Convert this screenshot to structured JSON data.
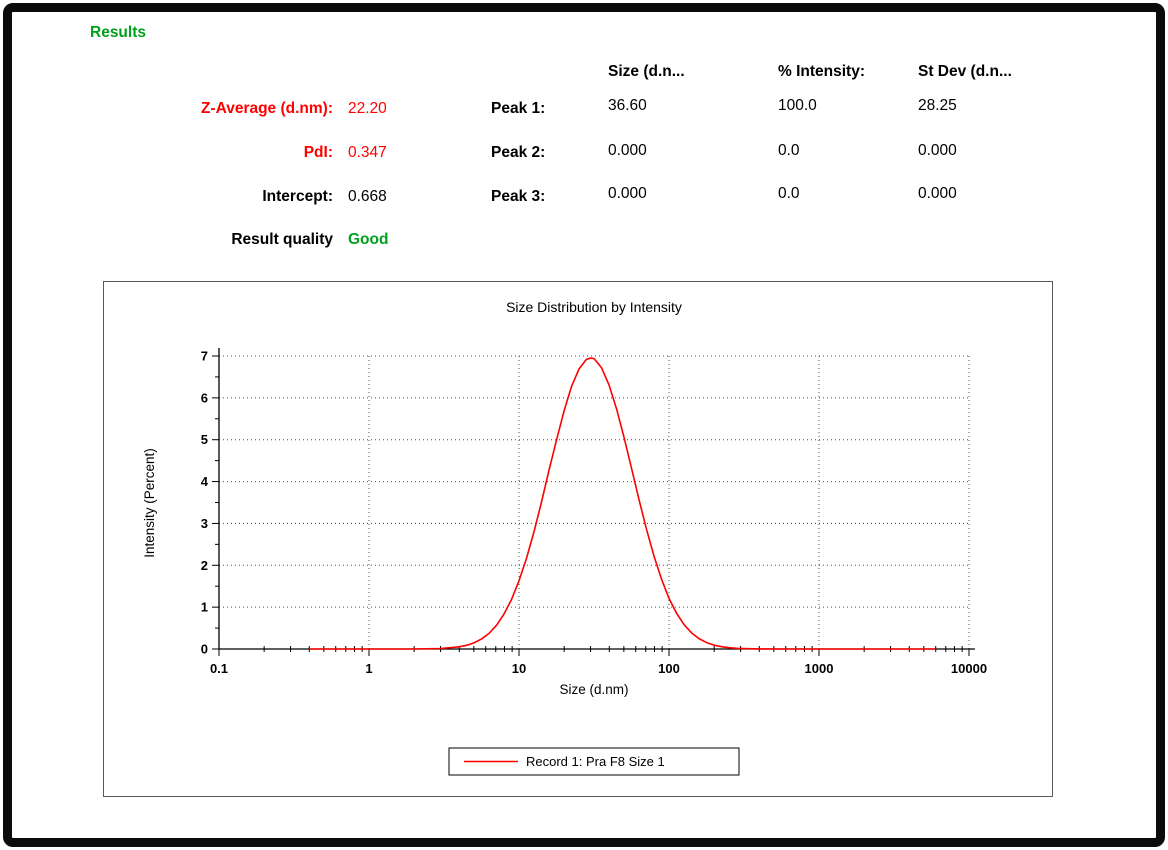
{
  "header": {
    "title": "Results"
  },
  "summary": {
    "rows": [
      {
        "label": "Z-Average (d.nm):",
        "value": "22.20"
      },
      {
        "label": "PdI:",
        "value": "0.347"
      },
      {
        "label": "Intercept:",
        "value": "0.668"
      },
      {
        "label": "Result quality",
        "value": "Good"
      }
    ]
  },
  "peaks": {
    "col_headers": {
      "size": "Size (d.n...",
      "intensity": "% Intensity:",
      "stdev": "St Dev (d.n..."
    },
    "rows": [
      {
        "label": "Peak 1:",
        "size": "36.60",
        "intensity": "100.0",
        "stdev": "28.25"
      },
      {
        "label": "Peak 2:",
        "size": "0.000",
        "intensity": "0.0",
        "stdev": "0.000"
      },
      {
        "label": "Peak 3:",
        "size": "0.000",
        "intensity": "0.0",
        "stdev": "0.000"
      }
    ]
  },
  "colors": {
    "accent_green": "#00a11c",
    "accent_red": "#ff0000",
    "curve_red": "#ff0000",
    "frame_black": "#0b0b0b"
  },
  "chart_data": {
    "type": "line",
    "title": "Size Distribution by Intensity",
    "xlabel": "Size (d.nm)",
    "ylabel": "Intensity (Percent)",
    "x_scale": "log",
    "xlim": [
      0.1,
      10000
    ],
    "ylim": [
      0,
      7
    ],
    "x_ticks": [
      "0.1",
      "1",
      "10",
      "100",
      "1000",
      "10000"
    ],
    "y_tick_step": 1,
    "grid_style": "dotted",
    "legend": {
      "position": "bottom-center",
      "label": "Record 1: Pra F8 Size 1"
    },
    "series": [
      {
        "name": "Record 1: Pra F8 Size 1",
        "color": "#ff0000",
        "peak_nm": 30,
        "peak_intensity": 6.95,
        "x": [
          0.4,
          1,
          2,
          3,
          4,
          4.5,
          5,
          5.6,
          6.3,
          7.1,
          7.9,
          8.9,
          10,
          11.2,
          12.6,
          14.1,
          15.8,
          17.8,
          20,
          22.4,
          25.1,
          28.2,
          30,
          31.6,
          35.5,
          39.8,
          44.7,
          50.1,
          56.2,
          63.1,
          70.8,
          79.4,
          89.1,
          100,
          112,
          126,
          141,
          158,
          178,
          200,
          224,
          251,
          282,
          316,
          398,
          630,
          1000,
          3000,
          6000
        ],
        "y": [
          0,
          0,
          0.001,
          0.012,
          0.053,
          0.091,
          0.146,
          0.234,
          0.37,
          0.571,
          0.82,
          1.175,
          1.63,
          2.16,
          2.81,
          3.5,
          4.25,
          5.0,
          5.7,
          6.27,
          6.69,
          6.92,
          6.95,
          6.94,
          6.72,
          6.31,
          5.74,
          5.06,
          4.32,
          3.57,
          2.86,
          2.22,
          1.67,
          1.21,
          0.86,
          0.58,
          0.39,
          0.25,
          0.154,
          0.091,
          0.054,
          0.03,
          0.017,
          0.009,
          0.003,
          0,
          0,
          0,
          0
        ]
      }
    ]
  }
}
